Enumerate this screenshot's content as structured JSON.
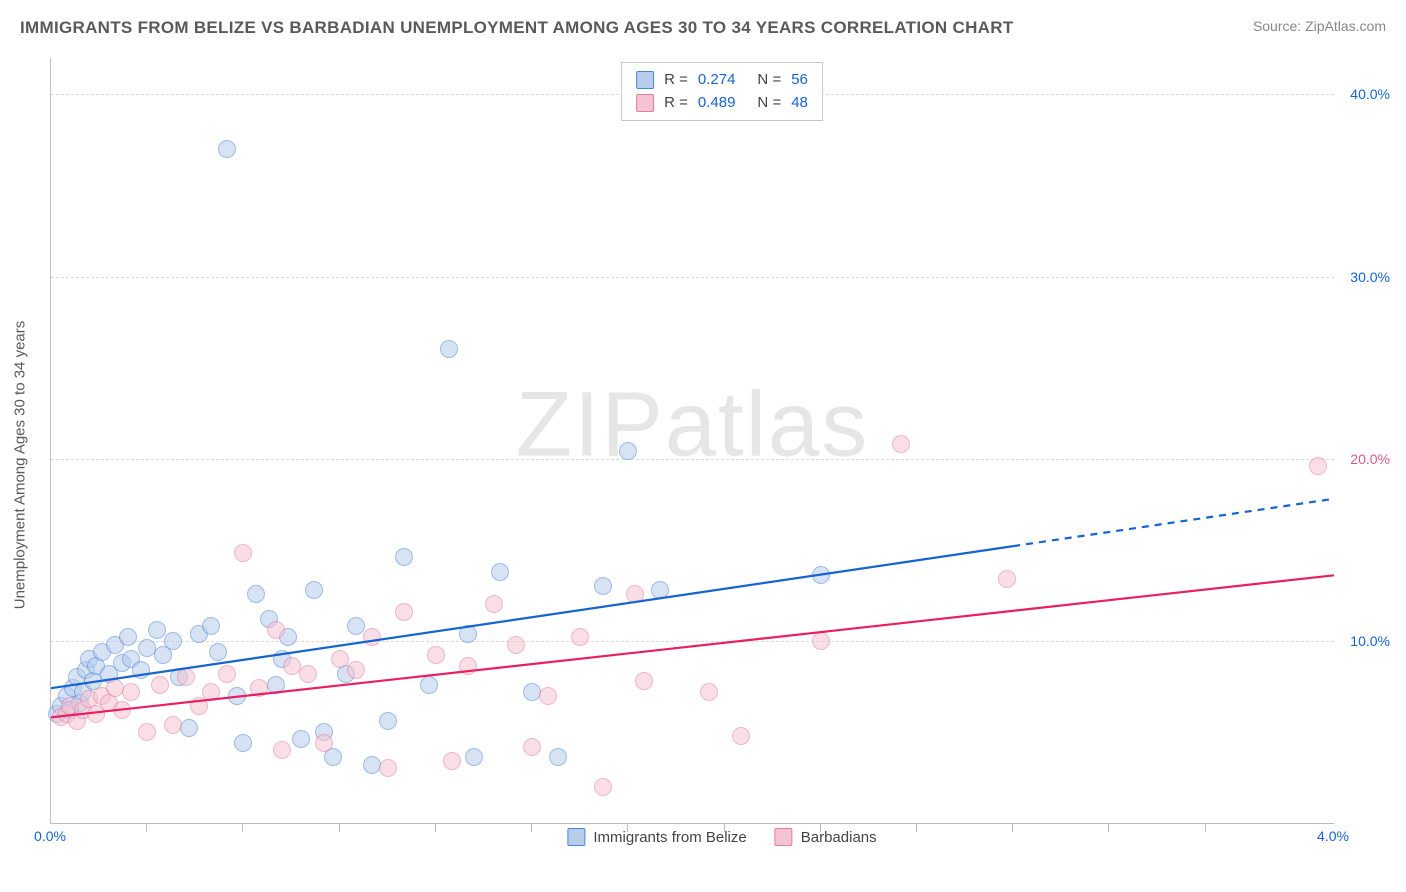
{
  "header": {
    "title": "IMMIGRANTS FROM BELIZE VS BARBADIAN UNEMPLOYMENT AMONG AGES 30 TO 34 YEARS CORRELATION CHART",
    "source_prefix": "Source: ",
    "source_name": "ZipAtlas.com"
  },
  "watermark": {
    "zip": "ZIP",
    "atlas": "atlas"
  },
  "chart": {
    "type": "scatter",
    "y_axis_title": "Unemployment Among Ages 30 to 34 years",
    "xlim": [
      0.0,
      4.0
    ],
    "ylim": [
      0.0,
      42.0
    ],
    "x_ticks": [
      0.0,
      4.0
    ],
    "x_tick_labels": [
      "0.0%",
      "4.0%"
    ],
    "x_minor_ticks": [
      0.3,
      0.6,
      0.9,
      1.2,
      1.5,
      1.8,
      2.1,
      2.4,
      2.7,
      3.0,
      3.3,
      3.6
    ],
    "y_ticks": [
      10.0,
      20.0,
      30.0,
      40.0
    ],
    "y_tick_labels": [
      "10.0%",
      "20.0%",
      "30.0%",
      "40.0%"
    ],
    "x_label_color": "#1763cf",
    "y_label_color_a": "#1763cf",
    "y_label_color_b": "#d85b84",
    "background_color": "#ffffff",
    "grid_color": "#dadada",
    "marker_radius": 9,
    "marker_stroke_width": 1.4,
    "series": [
      {
        "key": "blue",
        "label": "Immigrants from Belize",
        "fill": "#b7cceb",
        "stroke": "#4b86d6",
        "fill_opacity": 0.55,
        "R": "0.274",
        "N": "56",
        "trend": {
          "y_at_xmin": 7.4,
          "y_at_xmax": 17.8,
          "solid_until_x": 3.0,
          "color": "#1763cf",
          "width": 2.2
        },
        "points": [
          [
            0.02,
            6.0
          ],
          [
            0.03,
            6.4
          ],
          [
            0.05,
            7.0
          ],
          [
            0.06,
            6.2
          ],
          [
            0.07,
            7.4
          ],
          [
            0.08,
            8.0
          ],
          [
            0.09,
            6.6
          ],
          [
            0.1,
            7.2
          ],
          [
            0.11,
            8.4
          ],
          [
            0.12,
            9.0
          ],
          [
            0.13,
            7.8
          ],
          [
            0.14,
            8.6
          ],
          [
            0.16,
            9.4
          ],
          [
            0.18,
            8.2
          ],
          [
            0.2,
            9.8
          ],
          [
            0.22,
            8.8
          ],
          [
            0.24,
            10.2
          ],
          [
            0.25,
            9.0
          ],
          [
            0.28,
            8.4
          ],
          [
            0.3,
            9.6
          ],
          [
            0.33,
            10.6
          ],
          [
            0.35,
            9.2
          ],
          [
            0.38,
            10.0
          ],
          [
            0.4,
            8.0
          ],
          [
            0.43,
            5.2
          ],
          [
            0.46,
            10.4
          ],
          [
            0.5,
            10.8
          ],
          [
            0.52,
            9.4
          ],
          [
            0.55,
            37.0
          ],
          [
            0.58,
            7.0
          ],
          [
            0.6,
            4.4
          ],
          [
            0.64,
            12.6
          ],
          [
            0.68,
            11.2
          ],
          [
            0.7,
            7.6
          ],
          [
            0.72,
            9.0
          ],
          [
            0.74,
            10.2
          ],
          [
            0.78,
            4.6
          ],
          [
            0.82,
            12.8
          ],
          [
            0.85,
            5.0
          ],
          [
            0.88,
            3.6
          ],
          [
            0.92,
            8.2
          ],
          [
            0.95,
            10.8
          ],
          [
            1.0,
            3.2
          ],
          [
            1.05,
            5.6
          ],
          [
            1.1,
            14.6
          ],
          [
            1.18,
            7.6
          ],
          [
            1.24,
            26.0
          ],
          [
            1.3,
            10.4
          ],
          [
            1.32,
            3.6
          ],
          [
            1.4,
            13.8
          ],
          [
            1.5,
            7.2
          ],
          [
            1.58,
            3.6
          ],
          [
            1.72,
            13.0
          ],
          [
            1.8,
            20.4
          ],
          [
            1.9,
            12.8
          ],
          [
            2.4,
            13.6
          ]
        ]
      },
      {
        "key": "pink",
        "label": "Barbadians",
        "fill": "#f5c4d2",
        "stroke": "#e37ba0",
        "fill_opacity": 0.55,
        "R": "0.489",
        "N": "48",
        "trend": {
          "y_at_xmin": 5.8,
          "y_at_xmax": 13.6,
          "solid_until_x": 4.0,
          "color": "#e91e63",
          "width": 2.2
        },
        "points": [
          [
            0.03,
            5.8
          ],
          [
            0.05,
            6.0
          ],
          [
            0.06,
            6.4
          ],
          [
            0.08,
            5.6
          ],
          [
            0.1,
            6.2
          ],
          [
            0.12,
            6.8
          ],
          [
            0.14,
            6.0
          ],
          [
            0.16,
            7.0
          ],
          [
            0.18,
            6.6
          ],
          [
            0.2,
            7.4
          ],
          [
            0.22,
            6.2
          ],
          [
            0.25,
            7.2
          ],
          [
            0.3,
            5.0
          ],
          [
            0.34,
            7.6
          ],
          [
            0.38,
            5.4
          ],
          [
            0.42,
            8.0
          ],
          [
            0.46,
            6.4
          ],
          [
            0.5,
            7.2
          ],
          [
            0.55,
            8.2
          ],
          [
            0.6,
            14.8
          ],
          [
            0.65,
            7.4
          ],
          [
            0.7,
            10.6
          ],
          [
            0.72,
            4.0
          ],
          [
            0.75,
            8.6
          ],
          [
            0.8,
            8.2
          ],
          [
            0.85,
            4.4
          ],
          [
            0.9,
            9.0
          ],
          [
            0.95,
            8.4
          ],
          [
            1.0,
            10.2
          ],
          [
            1.05,
            3.0
          ],
          [
            1.1,
            11.6
          ],
          [
            1.2,
            9.2
          ],
          [
            1.25,
            3.4
          ],
          [
            1.3,
            8.6
          ],
          [
            1.38,
            12.0
          ],
          [
            1.45,
            9.8
          ],
          [
            1.55,
            7.0
          ],
          [
            1.65,
            10.2
          ],
          [
            1.72,
            2.0
          ],
          [
            1.85,
            7.8
          ],
          [
            1.82,
            12.6
          ],
          [
            2.05,
            7.2
          ],
          [
            2.15,
            4.8
          ],
          [
            2.4,
            10.0
          ],
          [
            2.65,
            20.8
          ],
          [
            2.98,
            13.4
          ],
          [
            3.95,
            19.6
          ],
          [
            1.5,
            4.2
          ]
        ]
      }
    ],
    "stats_legend": {
      "R_label": "R",
      "N_label": "N",
      "eq": "="
    }
  }
}
